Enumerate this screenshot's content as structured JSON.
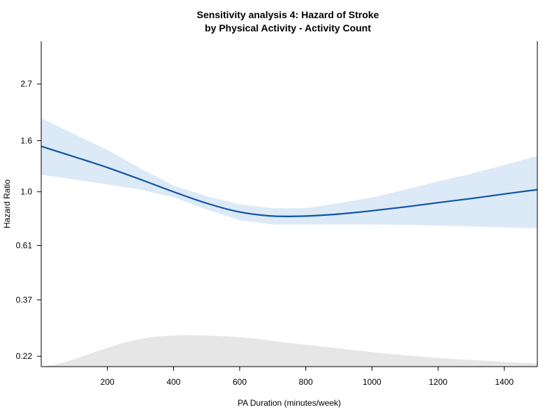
{
  "chart_data": {
    "type": "line",
    "title_line1": "Sensitivity analysis 4: Hazard of Stroke",
    "title_line2": "by Physical Activity - Activity Count",
    "xlabel": "PA Duration (minutes/week)",
    "ylabel": "Hazard Ratio",
    "y_scale": "log",
    "xlim": [
      0,
      1500
    ],
    "ylim": [
      0.2,
      4.0
    ],
    "x_ticks": [
      200,
      400,
      600,
      800,
      1000,
      1200,
      1400
    ],
    "y_ticks": [
      {
        "value": 0.22,
        "label": "0.22"
      },
      {
        "value": 0.37,
        "label": "0.37"
      },
      {
        "value": 0.61,
        "label": "0.61"
      },
      {
        "value": 1.0,
        "label": "1.0"
      },
      {
        "value": 1.6,
        "label": "1.6"
      },
      {
        "value": 2.7,
        "label": "2.7"
      }
    ],
    "colors": {
      "line": "#0f54a3",
      "ci_band": "#dce9f6",
      "density": "#e6e6e6"
    },
    "series": [
      {
        "x": [
          0,
          100,
          200,
          300,
          400,
          500,
          600,
          700,
          800,
          900,
          1000,
          1100,
          1200,
          1300,
          1400,
          1500
        ],
        "hr": [
          1.52,
          1.38,
          1.25,
          1.12,
          1.0,
          0.9,
          0.83,
          0.8,
          0.8,
          0.815,
          0.84,
          0.87,
          0.905,
          0.94,
          0.98,
          1.02
        ],
        "lower": [
          1.17,
          1.12,
          1.07,
          1.02,
          0.95,
          0.85,
          0.77,
          0.74,
          0.74,
          0.74,
          0.74,
          0.738,
          0.733,
          0.727,
          0.72,
          0.715
        ],
        "upper": [
          1.97,
          1.7,
          1.47,
          1.24,
          1.06,
          0.96,
          0.89,
          0.86,
          0.86,
          0.9,
          0.95,
          1.02,
          1.1,
          1.18,
          1.28,
          1.39
        ]
      }
    ],
    "density": {
      "x": [
        0,
        50,
        100,
        150,
        200,
        250,
        300,
        350,
        400,
        450,
        500,
        550,
        600,
        650,
        700,
        750,
        800,
        850,
        900,
        950,
        1000,
        1050,
        1100,
        1150,
        1200,
        1250,
        1300,
        1350,
        1400,
        1450,
        1500
      ],
      "value": [
        0.0,
        0.08,
        0.23,
        0.42,
        0.6,
        0.76,
        0.88,
        0.96,
        0.99,
        1.0,
        0.99,
        0.97,
        0.94,
        0.89,
        0.82,
        0.75,
        0.7,
        0.64,
        0.58,
        0.52,
        0.46,
        0.41,
        0.36,
        0.32,
        0.28,
        0.24,
        0.21,
        0.18,
        0.15,
        0.12,
        0.1
      ]
    }
  }
}
